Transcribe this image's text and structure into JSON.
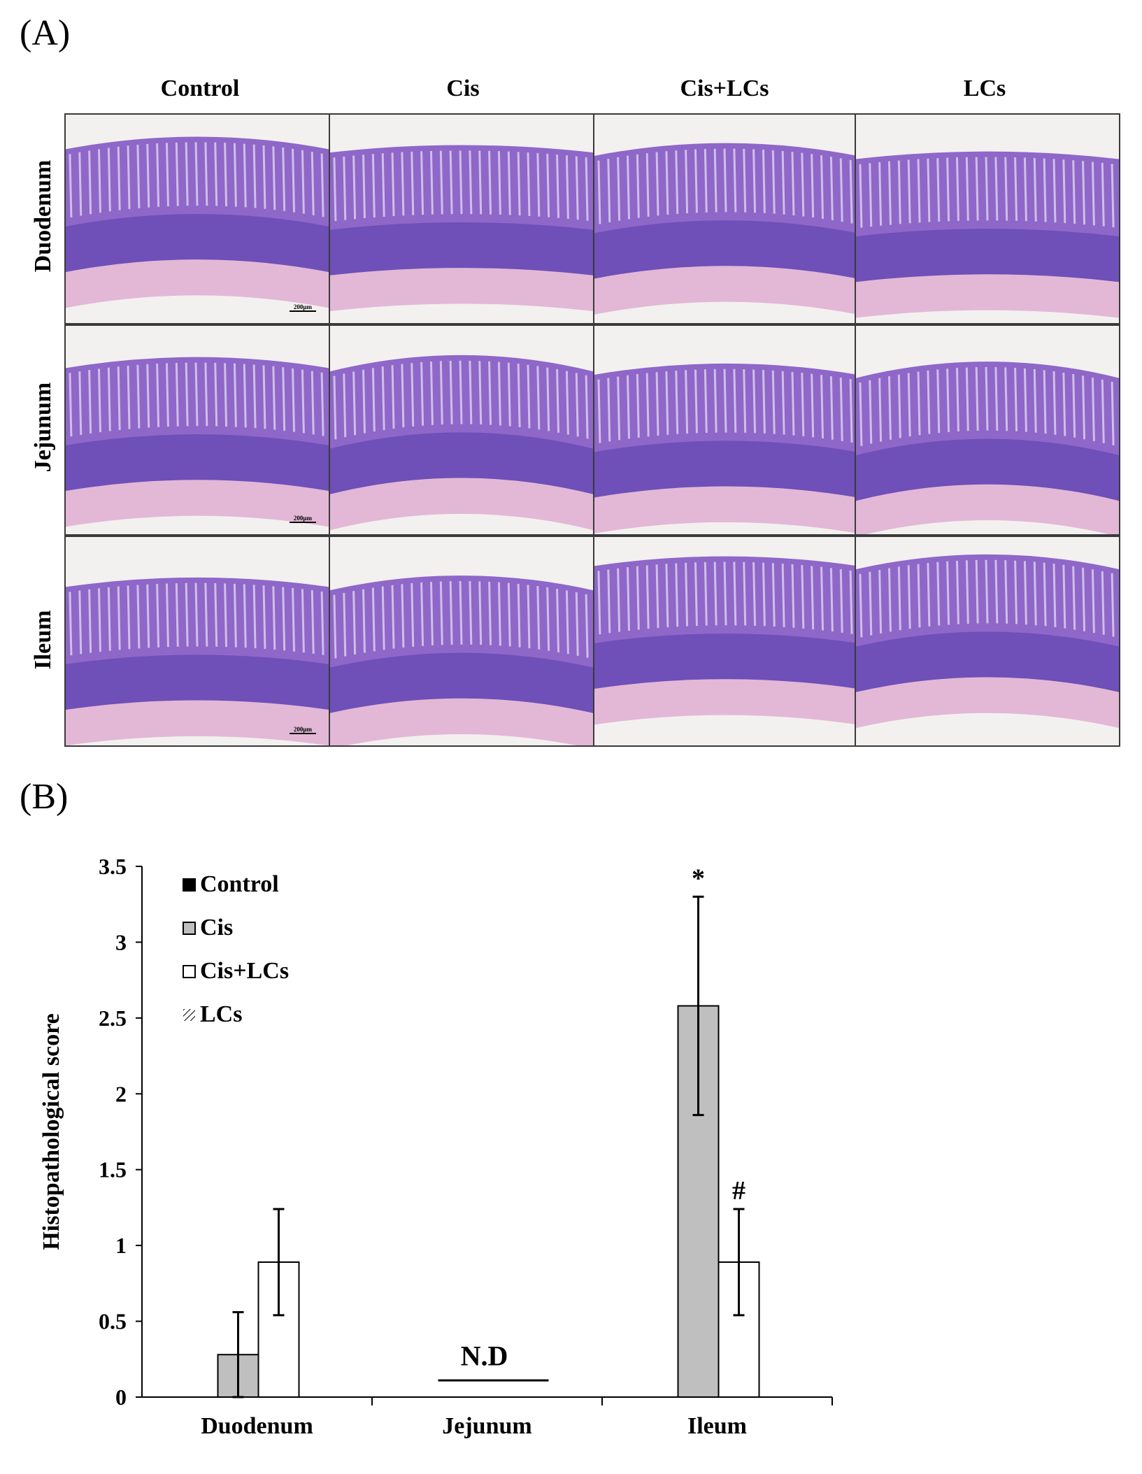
{
  "panel_a": {
    "label": "(A)",
    "columns": [
      "Control",
      "Cis",
      "Cis+LCs",
      "LCs"
    ],
    "rows": [
      "Duodenum",
      "Jejunum",
      "Ileum"
    ],
    "scale_bar": "200μm"
  },
  "panel_b": {
    "label": "(B)"
  },
  "colors": {
    "tissue_villi": "#8e67c9",
    "tissue_crypt": "#6f4fb8",
    "muscularis": "#e3b8d6",
    "background": "#f3f0f0",
    "cis_bar": "#bfbfbf",
    "cis_lcs_bar": "#ffffff"
  },
  "chart_data": {
    "type": "bar",
    "categories": [
      "Duodenum",
      "Jejunum",
      "Ileum"
    ],
    "series": [
      {
        "name": "Control",
        "values": [
          0,
          0,
          0
        ],
        "color": "#000000"
      },
      {
        "name": "Cis",
        "values": [
          0.28,
          0,
          2.58
        ],
        "errors": [
          0.28,
          0,
          0.72
        ],
        "color": "#bfbfbf"
      },
      {
        "name": "Cis+LCs",
        "values": [
          0.89,
          0,
          0.89
        ],
        "errors": [
          0.35,
          0,
          0.35
        ],
        "color": "#ffffff"
      },
      {
        "name": "LCs",
        "values": [
          0,
          0,
          0
        ],
        "pattern": "hatched"
      }
    ],
    "ylabel": "Histopathological score",
    "xlabel": "",
    "ylim": [
      0,
      3.5
    ],
    "yticks": [
      "0",
      "0.5",
      "1",
      "1.5",
      "2",
      "2.5",
      "3",
      "3.5"
    ],
    "annotations": [
      {
        "text": "*",
        "category": "Ileum",
        "series": "Cis"
      },
      {
        "text": "#",
        "category": "Ileum",
        "series": "Cis+LCs"
      },
      {
        "text": "N.D",
        "category": "Jejunum"
      }
    ],
    "legend_position": "top-left",
    "grid": false
  }
}
